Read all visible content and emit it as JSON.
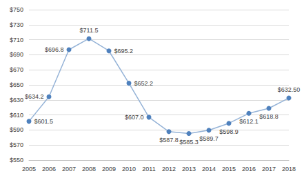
{
  "chart_data": {
    "type": "line",
    "categories": [
      "2005",
      "2006",
      "2007",
      "2008",
      "2009",
      "2010",
      "2011",
      "2012",
      "2013",
      "2014",
      "2015",
      "2016",
      "2017",
      "2018"
    ],
    "values": [
      601.5,
      634.2,
      696.8,
      711.5,
      695.2,
      652.2,
      607.0,
      587.8,
      585.3,
      589.7,
      598.9,
      612.1,
      618.8,
      632.5
    ],
    "value_labels": [
      "$601.5",
      "$634.2",
      "$696.8",
      "$711.5",
      "$695.2",
      "$652.2",
      "$607.0",
      "$587.8",
      "$585.3",
      "$589.7",
      "$598.9",
      "$612.1",
      "$618.8",
      "$632.50"
    ],
    "color": "#4f81bd",
    "ylim": [
      550,
      750
    ],
    "yticks": [
      {
        "value": 550,
        "label": "$550"
      },
      {
        "value": 570,
        "label": "$570"
      },
      {
        "value": 590,
        "label": "$590"
      },
      {
        "value": 610,
        "label": "$610"
      },
      {
        "value": 630,
        "label": "$630"
      },
      {
        "value": 650,
        "label": "$650"
      },
      {
        "value": 670,
        "label": "$670"
      },
      {
        "value": 690,
        "label": "$690"
      },
      {
        "value": 710,
        "label": "$710"
      },
      {
        "value": 730,
        "label": "$730"
      },
      {
        "value": 750,
        "label": "$750"
      }
    ],
    "grid": true,
    "data_labels": true,
    "marker": "circle"
  }
}
